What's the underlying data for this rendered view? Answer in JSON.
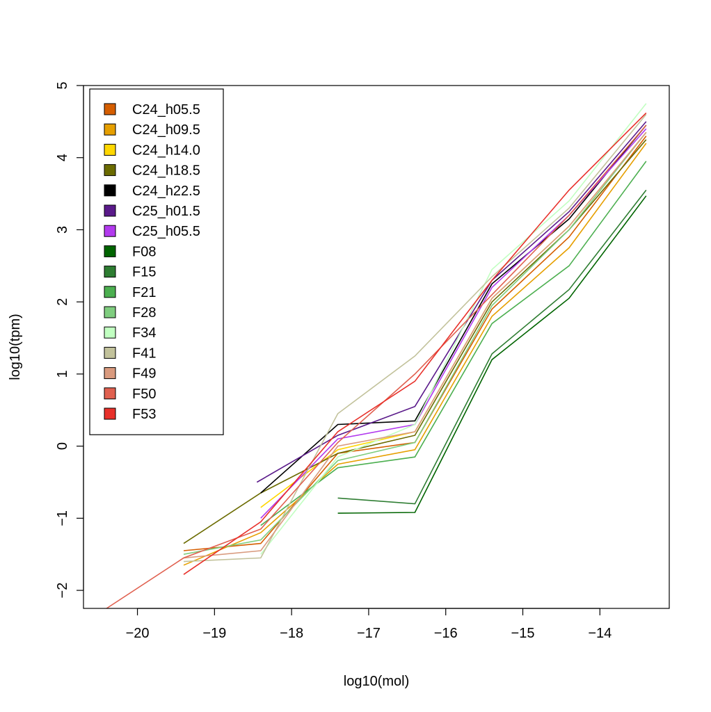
{
  "chart_data": {
    "type": "line",
    "title": "",
    "xlabel": "log10(mol)",
    "ylabel": "log10(tpm)",
    "xlim": [
      -20.7,
      -13.1
    ],
    "ylim": [
      -2.25,
      5.0
    ],
    "x_ticks": [
      -20,
      -19,
      -18,
      -17,
      -16,
      -15,
      -14
    ],
    "x_tick_labels": [
      "−20",
      "−19",
      "−18",
      "−17",
      "−16",
      "−15",
      "−14"
    ],
    "y_ticks": [
      -2,
      -1,
      0,
      1,
      2,
      3,
      4,
      5
    ],
    "y_tick_labels": [
      "−2",
      "−1",
      "0",
      "1",
      "2",
      "3",
      "4",
      "5"
    ],
    "grid": false,
    "legend_position": "top-left",
    "series": [
      {
        "name": "C24_h05.5",
        "color": "#D55E00",
        "points": [
          [
            -19.4,
            -1.45
          ],
          [
            -18.4,
            -1.35
          ],
          [
            -17.4,
            -0.1
          ],
          [
            -16.4,
            0.05
          ],
          [
            -15.4,
            1.9
          ],
          [
            -14.4,
            2.9
          ],
          [
            -13.4,
            4.3
          ]
        ]
      },
      {
        "name": "C24_h09.5",
        "color": "#E69F00",
        "points": [
          [
            -19.4,
            -1.65
          ],
          [
            -18.4,
            -1.2
          ],
          [
            -17.4,
            -0.25
          ],
          [
            -16.4,
            -0.05
          ],
          [
            -15.4,
            1.8
          ],
          [
            -14.4,
            2.75
          ],
          [
            -13.4,
            4.2
          ]
        ]
      },
      {
        "name": "C24_h14.0",
        "color": "#FFD700",
        "points": [
          [
            -18.4,
            -0.85
          ],
          [
            -17.4,
            -0.05
          ],
          [
            -16.4,
            0.2
          ],
          [
            -15.4,
            2.05
          ],
          [
            -14.4,
            3.05
          ],
          [
            -13.4,
            4.35
          ]
        ]
      },
      {
        "name": "C24_h18.5",
        "color": "#6B6B00",
        "points": [
          [
            -19.4,
            -1.35
          ],
          [
            -18.4,
            -0.65
          ],
          [
            -17.4,
            -0.1
          ],
          [
            -16.4,
            0.15
          ],
          [
            -15.4,
            2.0
          ],
          [
            -14.4,
            3.0
          ],
          [
            -13.4,
            4.25
          ]
        ]
      },
      {
        "name": "C24_h22.5",
        "color": "#000000",
        "points": [
          [
            -18.4,
            -0.65
          ],
          [
            -17.4,
            0.3
          ],
          [
            -16.4,
            0.35
          ],
          [
            -15.4,
            2.25
          ],
          [
            -14.4,
            3.15
          ],
          [
            -13.4,
            4.45
          ]
        ]
      },
      {
        "name": "C25_h01.5",
        "color": "#5A1A8A",
        "points": [
          [
            -18.45,
            -0.5
          ],
          [
            -17.4,
            0.15
          ],
          [
            -16.4,
            0.55
          ],
          [
            -15.4,
            2.3
          ],
          [
            -14.4,
            3.25
          ],
          [
            -13.4,
            4.5
          ]
        ]
      },
      {
        "name": "C25_h05.5",
        "color": "#B23AEE",
        "points": [
          [
            -18.4,
            -1.0
          ],
          [
            -17.4,
            0.1
          ],
          [
            -16.4,
            0.3
          ],
          [
            -15.4,
            2.2
          ],
          [
            -14.4,
            3.2
          ],
          [
            -13.4,
            4.4
          ]
        ]
      },
      {
        "name": "F08",
        "color": "#006400",
        "points": [
          [
            -17.4,
            -0.93
          ],
          [
            -16.4,
            -0.92
          ],
          [
            -15.4,
            1.2
          ],
          [
            -14.4,
            2.05
          ],
          [
            -13.4,
            3.47
          ]
        ]
      },
      {
        "name": "F15",
        "color": "#2E7D32",
        "points": [
          [
            -17.4,
            -0.72
          ],
          [
            -16.4,
            -0.8
          ],
          [
            -15.4,
            1.28
          ],
          [
            -14.4,
            2.17
          ],
          [
            -13.4,
            3.55
          ]
        ]
      },
      {
        "name": "F21",
        "color": "#4CAF50",
        "points": [
          [
            -18.4,
            -1.1
          ],
          [
            -17.4,
            -0.3
          ],
          [
            -16.4,
            -0.15
          ],
          [
            -15.4,
            1.7
          ],
          [
            -14.4,
            2.5
          ],
          [
            -13.4,
            3.95
          ]
        ]
      },
      {
        "name": "F28",
        "color": "#7FCD7F",
        "points": [
          [
            -19.4,
            -1.5
          ],
          [
            -18.4,
            -1.3
          ],
          [
            -17.4,
            -0.2
          ],
          [
            -16.4,
            0.05
          ],
          [
            -15.4,
            1.95
          ],
          [
            -14.4,
            3.0
          ],
          [
            -13.4,
            4.35
          ]
        ]
      },
      {
        "name": "F34",
        "color": "#C1FFC1",
        "points": [
          [
            -18.4,
            -1.5
          ],
          [
            -17.4,
            -0.15
          ],
          [
            -16.4,
            0.3
          ],
          [
            -15.4,
            2.45
          ],
          [
            -14.4,
            3.4
          ],
          [
            -13.4,
            4.75
          ]
        ]
      },
      {
        "name": "F41",
        "color": "#C2C29B",
        "points": [
          [
            -19.4,
            -1.6
          ],
          [
            -18.4,
            -1.55
          ],
          [
            -17.4,
            0.45
          ],
          [
            -16.4,
            1.25
          ],
          [
            -15.4,
            2.35
          ],
          [
            -14.4,
            3.3
          ],
          [
            -13.4,
            4.6
          ]
        ]
      },
      {
        "name": "F49",
        "color": "#D99A7E",
        "points": [
          [
            -19.4,
            -1.55
          ],
          [
            -18.4,
            -1.45
          ],
          [
            -17.4,
            0.0
          ],
          [
            -16.4,
            0.2
          ],
          [
            -15.4,
            2.05
          ],
          [
            -14.4,
            3.05
          ],
          [
            -13.4,
            4.35
          ]
        ]
      },
      {
        "name": "F50",
        "color": "#E0604F",
        "points": [
          [
            -20.4,
            -2.25
          ],
          [
            -19.4,
            -1.55
          ],
          [
            -18.4,
            -1.15
          ],
          [
            -17.4,
            0.05
          ],
          [
            -16.4,
            1.0
          ],
          [
            -15.4,
            2.1
          ],
          [
            -14.4,
            3.2
          ],
          [
            -13.4,
            4.45
          ]
        ]
      },
      {
        "name": "F53",
        "color": "#E8302A",
        "points": [
          [
            -19.4,
            -1.78
          ],
          [
            -18.4,
            -1.05
          ],
          [
            -17.4,
            0.2
          ],
          [
            -16.4,
            0.9
          ],
          [
            -15.4,
            2.3
          ],
          [
            -14.4,
            3.55
          ],
          [
            -13.4,
            4.62
          ]
        ]
      }
    ]
  }
}
